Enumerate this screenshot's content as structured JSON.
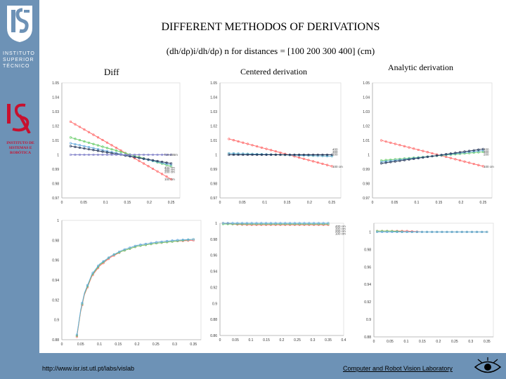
{
  "sidebar": {
    "institute_lines": [
      "INSTITUTO",
      "SUPERIOR",
      "TÉCNICO"
    ],
    "isr_lines": [
      "INSTITUTO DE",
      "SISTEMAS E",
      "ROBÓTICA"
    ],
    "brand_color": "#6d92b6",
    "isr_color": "#c8102e"
  },
  "title": "DIFFERENT METHODOS OF DERIVATIONS",
  "subtitle": "(dh/dρ)i/dh/dρ) n for distances = [100 200 300 400] (cm)",
  "columns": {
    "diff": "Diff",
    "centered": "Centered derivation",
    "analytic": "Analytic derivation"
  },
  "footer": {
    "url": "http://www.isr.ist.utl.pt/labs/vislab",
    "lab": "Computer and Robot Vision Laboratory"
  },
  "chart_data": [
    {
      "id": "diff-top",
      "type": "line",
      "xticks": [
        "0",
        "0.05",
        "0.1",
        "0.15",
        "0.2",
        "0.25"
      ],
      "yticks": [
        "0.97",
        "0.98",
        "0.99",
        "1",
        "1.01",
        "1.02",
        "1.03",
        "1.04",
        "1.05"
      ],
      "xlim": [
        0,
        0.27
      ],
      "ylim": [
        0.97,
        1.05
      ],
      "series": [
        {
          "name": "100 cm",
          "color": "#ff6666",
          "x": [
            0.02,
            0.25
          ],
          "y": [
            1.023,
            0.983
          ]
        },
        {
          "name": "200 cm",
          "color": "#66cc66",
          "x": [
            0.02,
            0.25
          ],
          "y": [
            1.012,
            0.992
          ]
        },
        {
          "name": "300 cm",
          "color": "#66aadd",
          "x": [
            0.02,
            0.25
          ],
          "y": [
            1.008,
            0.993
          ]
        },
        {
          "name": "400 cm",
          "color": "#223355",
          "x": [
            0.02,
            0.25
          ],
          "y": [
            1.006,
            0.994
          ]
        },
        {
          "name": "f=0.286m",
          "color": "#8888cc",
          "x": [
            0.02,
            0.25
          ],
          "y": [
            1.0,
            1.0
          ]
        }
      ],
      "labels": [
        "f=0.286m",
        "400 cm",
        "300 cm",
        "200 cm",
        "100 cm"
      ]
    },
    {
      "id": "cent-top",
      "type": "line",
      "xticks": [
        "0",
        "0.05",
        "0.1",
        "0.15",
        "0.2",
        "0.25"
      ],
      "yticks": [
        "0.97",
        "0.98",
        "0.99",
        "1",
        "1.01",
        "1.02",
        "1.03",
        "1.04",
        "1.05"
      ],
      "xlim": [
        0,
        0.27
      ],
      "ylim": [
        0.97,
        1.05
      ],
      "series": [
        {
          "name": "100 cm",
          "color": "#ff6666",
          "x": [
            0.02,
            0.25
          ],
          "y": [
            1.011,
            0.992
          ]
        },
        {
          "name": "200 cm",
          "color": "#66cc66",
          "x": [
            0.02,
            0.25
          ],
          "y": [
            1.001,
            0.999
          ]
        },
        {
          "name": "300 cm",
          "color": "#66aadd",
          "x": [
            0.02,
            0.25
          ],
          "y": [
            1.001,
            0.999
          ]
        },
        {
          "name": "400 cm",
          "color": "#223355",
          "x": [
            0.02,
            0.25
          ],
          "y": [
            1.0,
            1.0
          ]
        }
      ],
      "labels": [
        "400",
        "300",
        "200",
        "100 cm"
      ]
    },
    {
      "id": "anal-top",
      "type": "line",
      "xticks": [
        "0",
        "0.05",
        "0.1",
        "0.15",
        "0.2",
        "0.25"
      ],
      "yticks": [
        "0.97",
        "0.98",
        "0.99",
        "1",
        "1.01",
        "1.02",
        "1.03",
        "1.04",
        "1.05"
      ],
      "xlim": [
        0,
        0.27
      ],
      "ylim": [
        0.97,
        1.05
      ],
      "series": [
        {
          "name": "100 cm",
          "color": "#ff6666",
          "x": [
            0.02,
            0.25
          ],
          "y": [
            1.01,
            0.992
          ]
        },
        {
          "name": "200 cm",
          "color": "#66cc66",
          "x": [
            0.02,
            0.25
          ],
          "y": [
            0.996,
            1.002
          ]
        },
        {
          "name": "300 cm",
          "color": "#66aadd",
          "x": [
            0.02,
            0.25
          ],
          "y": [
            0.995,
            1.003
          ]
        },
        {
          "name": "400 cm",
          "color": "#223355",
          "x": [
            0.02,
            0.25
          ],
          "y": [
            0.994,
            1.004
          ]
        }
      ],
      "labels": [
        "400",
        "300",
        "200",
        "100 cm"
      ]
    },
    {
      "id": "diff-bottom",
      "type": "line",
      "xticks": [
        "0",
        "0.05",
        "0.1",
        "0.15",
        "0.2",
        "0.25",
        "0.3",
        "0.35"
      ],
      "yticks": [
        "0.88",
        "0.9",
        "0.92",
        "0.94",
        "0.96",
        "0.98",
        "1"
      ],
      "xlim": [
        0,
        0.37
      ],
      "ylim": [
        0.88,
        1.0
      ],
      "series": [
        {
          "name": "100 cm",
          "color": "#ff6666",
          "x": [
            0.04,
            0.05,
            0.06,
            0.08,
            0.1,
            0.13,
            0.16,
            0.2,
            0.25,
            0.3,
            0.35
          ],
          "y": [
            0.883,
            0.908,
            0.925,
            0.944,
            0.954,
            0.963,
            0.969,
            0.974,
            0.977,
            0.979,
            0.98
          ]
        },
        {
          "name": "200 cm",
          "color": "#66cc66",
          "x": [
            0.04,
            0.05,
            0.06,
            0.08,
            0.1,
            0.13,
            0.16,
            0.2,
            0.25,
            0.3,
            0.35
          ],
          "y": [
            0.884,
            0.909,
            0.926,
            0.945,
            0.955,
            0.964,
            0.969,
            0.974,
            0.977,
            0.979,
            0.981
          ]
        },
        {
          "name": "300 cm",
          "color": "#66aadd",
          "x": [
            0.04,
            0.05,
            0.06,
            0.08,
            0.1,
            0.13,
            0.16,
            0.2,
            0.25,
            0.3,
            0.35
          ],
          "y": [
            0.885,
            0.91,
            0.927,
            0.946,
            0.956,
            0.964,
            0.97,
            0.975,
            0.978,
            0.98,
            0.981
          ]
        }
      ],
      "labels": []
    },
    {
      "id": "cent-bottom",
      "type": "line",
      "xticks": [
        "0",
        "0.05",
        "0.1",
        "0.15",
        "0.2",
        "0.25",
        "0.3",
        "0.35",
        "0.4"
      ],
      "yticks": [
        "0.86",
        "0.88",
        "0.9",
        "0.92",
        "0.94",
        "0.96",
        "0.98",
        "1"
      ],
      "xlim": [
        0,
        0.4
      ],
      "ylim": [
        0.86,
        1.0
      ],
      "series": [
        {
          "name": "100 cm",
          "color": "#ff6666",
          "x": [
            0.01,
            0.05,
            0.1,
            0.15,
            0.2,
            0.25,
            0.3,
            0.35
          ],
          "y": [
            1.0,
            0.9985,
            0.998,
            0.998,
            0.998,
            0.998,
            0.998,
            0.998
          ]
        },
        {
          "name": "200 cm",
          "color": "#66cc66",
          "x": [
            0.01,
            0.05,
            0.1,
            0.15,
            0.2,
            0.25,
            0.3,
            0.35
          ],
          "y": [
            0.999,
            0.999,
            0.999,
            0.999,
            0.999,
            0.999,
            0.999,
            0.999
          ]
        },
        {
          "name": "300 cm",
          "color": "#66aadd",
          "x": [
            0.01,
            0.05,
            0.1,
            0.15,
            0.2,
            0.25,
            0.3,
            0.35
          ],
          "y": [
            1.0,
            1.0,
            1.0,
            1.0,
            1.0,
            1.0,
            1.0,
            1.0
          ]
        }
      ],
      "labels": [
        "400 cm",
        "300 cm",
        "200 cm",
        "100 cm"
      ]
    },
    {
      "id": "anal-bottom",
      "type": "line",
      "xticks": [
        "0",
        "0.05",
        "0.1",
        "0.15",
        "0.2",
        "0.25",
        "0.3",
        "0.35"
      ],
      "yticks": [
        "0.88",
        "0.9",
        "0.92",
        "0.94",
        "0.96",
        "0.98",
        "1"
      ],
      "xlim": [
        0,
        0.37
      ],
      "ylim": [
        0.88,
        1.01
      ],
      "series": [
        {
          "name": "100 cm",
          "color": "#ff6666",
          "x": [
            0.01,
            0.05,
            0.1,
            0.15,
            0.2,
            0.25,
            0.3,
            0.35
          ],
          "y": [
            1.001,
            1.001,
            1.001,
            1.0,
            1.0,
            1.0,
            1.0,
            1.0
          ]
        },
        {
          "name": "200 cm",
          "color": "#66cc66",
          "x": [
            0.01,
            0.05,
            0.1,
            0.15,
            0.2,
            0.25,
            0.3,
            0.35
          ],
          "y": [
            1.001,
            1.001,
            1.0,
            1.0,
            1.0,
            1.0,
            1.0,
            1.0
          ]
        },
        {
          "name": "300 cm",
          "color": "#66aadd",
          "x": [
            0.01,
            0.05,
            0.1,
            0.15,
            0.2,
            0.25,
            0.3,
            0.35
          ],
          "y": [
            1.0,
            1.0,
            1.0,
            1.0,
            1.0,
            1.0,
            1.0,
            1.0
          ]
        }
      ],
      "labels": []
    }
  ]
}
